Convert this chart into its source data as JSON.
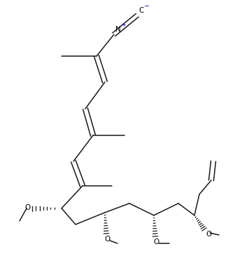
{
  "background": "#ffffff",
  "line_color": "#1a1a1a",
  "text_color": "#000000",
  "blue_color": "#0000cd",
  "lw": 1.1,
  "figsize": [
    3.26,
    3.65
  ],
  "dpi": 100,
  "xlim": [
    0,
    326
  ],
  "ylim": [
    0,
    365
  ]
}
